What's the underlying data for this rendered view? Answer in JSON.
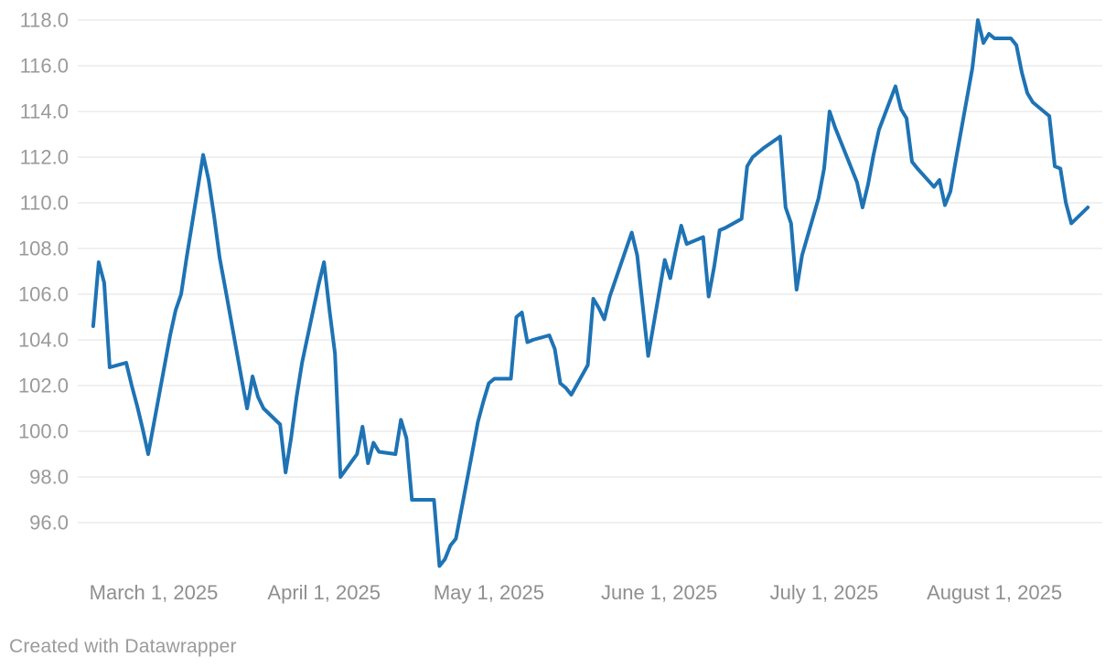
{
  "chart_data": {
    "type": "line",
    "title": "",
    "xlabel": "",
    "ylabel": "",
    "grid": "horizontal",
    "legend": "none",
    "ylim": [
      94.0,
      118.4
    ],
    "yticks": [
      96,
      98,
      100,
      102,
      104,
      106,
      108,
      110,
      112,
      114,
      116,
      118
    ],
    "ytick_labels": [
      "96.0",
      "98.0",
      "100.0",
      "102.0",
      "104.0",
      "106.0",
      "108.0",
      "110.0",
      "112.0",
      "114.0",
      "116.0",
      "118.0"
    ],
    "xticks": [
      {
        "date": "2025-03-01",
        "label": "March 1, 2025"
      },
      {
        "date": "2025-04-01",
        "label": "April 1, 2025"
      },
      {
        "date": "2025-05-01",
        "label": "May 1, 2025"
      },
      {
        "date": "2025-06-01",
        "label": "June 1, 2025"
      },
      {
        "date": "2025-07-01",
        "label": "July 1, 2025"
      },
      {
        "date": "2025-08-01",
        "label": "August 1, 2025"
      }
    ],
    "x": [
      "2025-02-18",
      "2025-02-19",
      "2025-02-20",
      "2025-02-21",
      "2025-02-24",
      "2025-02-25",
      "2025-02-26",
      "2025-02-27",
      "2025-02-28",
      "2025-03-03",
      "2025-03-04",
      "2025-03-05",
      "2025-03-06",
      "2025-03-07",
      "2025-03-10",
      "2025-03-11",
      "2025-03-12",
      "2025-03-13",
      "2025-03-14",
      "2025-03-17",
      "2025-03-18",
      "2025-03-19",
      "2025-03-20",
      "2025-03-21",
      "2025-03-24",
      "2025-03-25",
      "2025-03-26",
      "2025-03-27",
      "2025-03-28",
      "2025-03-31",
      "2025-04-01",
      "2025-04-02",
      "2025-04-03",
      "2025-04-04",
      "2025-04-07",
      "2025-04-08",
      "2025-04-09",
      "2025-04-10",
      "2025-04-11",
      "2025-04-14",
      "2025-04-15",
      "2025-04-16",
      "2025-04-17",
      "2025-04-21",
      "2025-04-22",
      "2025-04-23",
      "2025-04-24",
      "2025-04-25",
      "2025-04-28",
      "2025-04-29",
      "2025-04-30",
      "2025-05-01",
      "2025-05-02",
      "2025-05-05",
      "2025-05-06",
      "2025-05-07",
      "2025-05-08",
      "2025-05-09",
      "2025-05-12",
      "2025-05-13",
      "2025-05-14",
      "2025-05-15",
      "2025-05-16",
      "2025-05-19",
      "2025-05-20",
      "2025-05-21",
      "2025-05-22",
      "2025-05-23",
      "2025-05-27",
      "2025-05-28",
      "2025-05-29",
      "2025-05-30",
      "2025-06-02",
      "2025-06-03",
      "2025-06-04",
      "2025-06-05",
      "2025-06-06",
      "2025-06-09",
      "2025-06-10",
      "2025-06-11",
      "2025-06-12",
      "2025-06-13",
      "2025-06-16",
      "2025-06-17",
      "2025-06-18",
      "2025-06-20",
      "2025-06-23",
      "2025-06-24",
      "2025-06-25",
      "2025-06-26",
      "2025-06-27",
      "2025-06-30",
      "2025-07-01",
      "2025-07-02",
      "2025-07-03",
      "2025-07-07",
      "2025-07-08",
      "2025-07-09",
      "2025-07-10",
      "2025-07-11",
      "2025-07-14",
      "2025-07-15",
      "2025-07-16",
      "2025-07-17",
      "2025-07-18",
      "2025-07-21",
      "2025-07-22",
      "2025-07-23",
      "2025-07-24",
      "2025-07-25",
      "2025-07-28",
      "2025-07-29",
      "2025-07-30",
      "2025-07-31",
      "2025-08-01",
      "2025-08-04",
      "2025-08-05",
      "2025-08-06",
      "2025-08-07",
      "2025-08-08",
      "2025-08-11",
      "2025-08-12",
      "2025-08-13",
      "2025-08-14",
      "2025-08-15",
      "2025-08-18"
    ],
    "values": [
      104.6,
      107.4,
      106.5,
      102.8,
      103.0,
      102.0,
      101.1,
      100.1,
      99.0,
      102.9,
      104.2,
      105.3,
      106.0,
      107.6,
      112.1,
      111.0,
      109.4,
      107.6,
      106.3,
      102.3,
      101.0,
      102.4,
      101.5,
      101.0,
      100.3,
      98.2,
      99.7,
      101.5,
      103.0,
      106.4,
      107.4,
      105.3,
      103.4,
      98.0,
      99.0,
      100.2,
      98.6,
      99.5,
      99.1,
      99.0,
      100.5,
      99.7,
      97.0,
      97.0,
      94.1,
      94.4,
      95.0,
      95.3,
      99.1,
      100.4,
      101.3,
      102.1,
      102.3,
      102.3,
      105.0,
      105.2,
      103.9,
      104.0,
      104.2,
      103.6,
      102.1,
      101.9,
      101.6,
      102.9,
      105.8,
      105.4,
      104.9,
      105.9,
      108.7,
      107.7,
      105.5,
      103.3,
      107.5,
      106.7,
      107.9,
      109.0,
      108.2,
      108.5,
      105.9,
      107.2,
      108.8,
      108.9,
      109.3,
      111.6,
      112.0,
      112.4,
      112.9,
      109.8,
      109.1,
      106.2,
      107.7,
      110.2,
      111.5,
      114.0,
      113.3,
      110.9,
      109.8,
      110.8,
      112.1,
      113.2,
      115.1,
      114.1,
      113.7,
      111.8,
      111.5,
      110.7,
      111.0,
      109.9,
      110.5,
      111.9,
      115.9,
      118.0,
      117.0,
      117.4,
      117.2,
      117.2,
      116.9,
      115.7,
      114.8,
      114.4,
      113.8,
      111.6,
      111.5,
      110.0,
      109.1,
      109.8
    ]
  },
  "style": {
    "line_color": "#1e73b4",
    "grid_color": "#e2e2e2",
    "y_label_color": "#9a9a9a",
    "x_label_color": "#8f8f8f",
    "footer_color": "#9b9b9b",
    "background": "#ffffff"
  },
  "footer": {
    "credit": "Created with Datawrapper"
  }
}
